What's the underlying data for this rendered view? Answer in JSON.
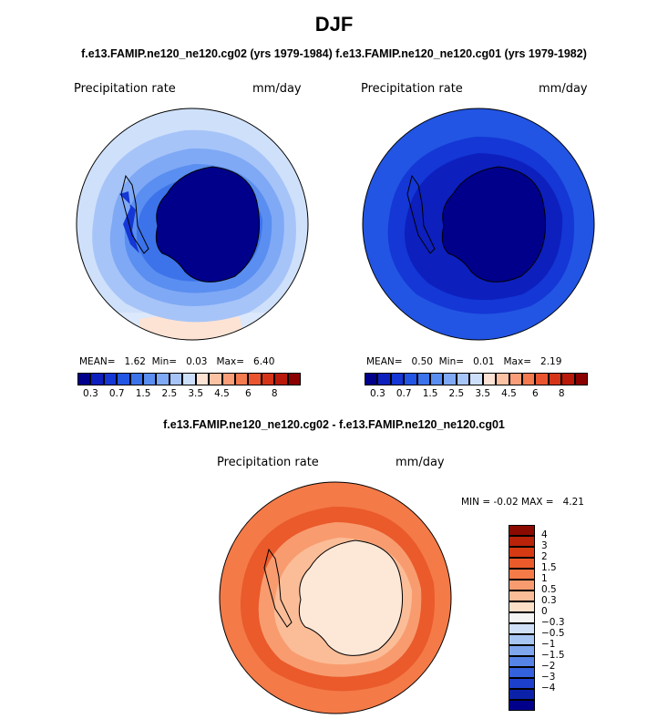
{
  "figure": {
    "title": "DJF",
    "subtitle_left": "f.e13.FAMIP.ne120_ne120.cg02 (yrs 1979-1984)",
    "subtitle_right": "f.e13.FAMIP.ne120_ne120.cg01 (yrs 1979-1982)",
    "diff_title": "f.e13.FAMIP.ne120_ne120.cg02 - f.e13.FAMIP.ne120_ne120.cg01"
  },
  "chart_data": [
    {
      "type": "heatmap",
      "projection": "south-polar-stereographic",
      "variable": "Precipitation rate",
      "units": "mm/day",
      "stats": {
        "mean_label": "MEAN=",
        "mean": "1.62",
        "min_label": "Min=",
        "min": "0.03",
        "max_label": "Max=",
        "max": "6.40"
      },
      "colorbar_ticks": [
        "0.3",
        "0.7",
        "1.5",
        "2.5",
        "3.5",
        "4.5",
        "6",
        "8"
      ],
      "colorbar_colors": [
        "#00008b",
        "#0d1fbd",
        "#1437d6",
        "#2255e3",
        "#3c73ea",
        "#5a8ef0",
        "#7fa9f5",
        "#a6c4f8",
        "#cde0fb",
        "#fde3d4",
        "#fbc2a4",
        "#f99e78",
        "#f47a50",
        "#ea5530",
        "#d63418",
        "#b8190a",
        "#8b0000"
      ]
    },
    {
      "type": "heatmap",
      "projection": "south-polar-stereographic",
      "variable": "Precipitation rate",
      "units": "mm/day",
      "stats": {
        "mean_label": "MEAN=",
        "mean": "0.50",
        "min_label": "Min=",
        "min": "0.01",
        "max_label": "Max=",
        "max": "2.19"
      },
      "colorbar_ticks": [
        "0.3",
        "0.7",
        "1.5",
        "2.5",
        "3.5",
        "4.5",
        "6",
        "8"
      ],
      "colorbar_colors": [
        "#00008b",
        "#0d1fbd",
        "#1437d6",
        "#2255e3",
        "#3c73ea",
        "#5a8ef0",
        "#7fa9f5",
        "#a6c4f8",
        "#cde0fb",
        "#fde3d4",
        "#fbc2a4",
        "#f99e78",
        "#f47a50",
        "#ea5530",
        "#d63418",
        "#b8190a",
        "#8b0000"
      ]
    },
    {
      "type": "heatmap",
      "projection": "south-polar-stereographic",
      "variable": "Precipitation rate",
      "units": "mm/day",
      "stats": {
        "min_label": "MIN =",
        "min": "-0.02",
        "max_label": "MAX =",
        "max": "4.21"
      },
      "colorbar_orientation": "vertical",
      "colorbar_ticks": [
        "4",
        "3",
        "2",
        "1.5",
        "1",
        "0.5",
        "0.3",
        "0",
        "−0.3",
        "−0.5",
        "−1",
        "−1.5",
        "−2",
        "−3",
        "−4"
      ],
      "colorbar_colors": [
        "#8b0a00",
        "#b8230a",
        "#d63a12",
        "#ea5a2a",
        "#f47a48",
        "#f89c70",
        "#fbbd98",
        "#fde0c8",
        "#f4f4f4",
        "#cfe0f7",
        "#a8c6f4",
        "#7ea7ee",
        "#5584e6",
        "#3461dc",
        "#1c3fcc",
        "#0b22a8",
        "#00008b"
      ]
    }
  ]
}
